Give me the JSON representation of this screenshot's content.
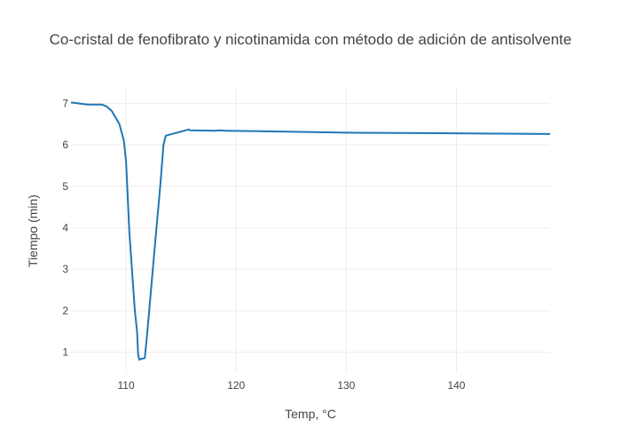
{
  "chart_data": {
    "type": "line",
    "title": "Co-cristal de fenofibrato y nicotinamida con método de adición de antisolvente",
    "xlabel": "Temp, °C",
    "ylabel": "Tiempo (min)",
    "xlim": [
      105,
      148.5
    ],
    "ylim": [
      0.5,
      7.35
    ],
    "xticks": [
      110,
      120,
      130,
      140
    ],
    "yticks": [
      1,
      2,
      3,
      4,
      5,
      6,
      7
    ],
    "grid": true,
    "legend": "none",
    "series": [
      {
        "color": "#1f77b4",
        "x": [
          105.0,
          106.5,
          107.8,
          108.2,
          108.7,
          109.4,
          109.8,
          110.0,
          110.3,
          110.8,
          111.0,
          111.1,
          111.2,
          111.4,
          111.7,
          111.9,
          112.2,
          112.6,
          113.1,
          113.4,
          113.6,
          115.7,
          115.8,
          118.1,
          118.6,
          119.0,
          121.5,
          126.4,
          130.7,
          138.7,
          148.5
        ],
        "y": [
          7.02,
          6.97,
          6.97,
          6.93,
          6.82,
          6.5,
          6.1,
          5.6,
          3.9,
          2.0,
          1.5,
          0.95,
          0.82,
          0.84,
          0.86,
          1.4,
          2.3,
          3.5,
          5.0,
          6.0,
          6.22,
          6.37,
          6.35,
          6.34,
          6.35,
          6.34,
          6.33,
          6.31,
          6.29,
          6.28,
          6.26
        ]
      }
    ]
  }
}
